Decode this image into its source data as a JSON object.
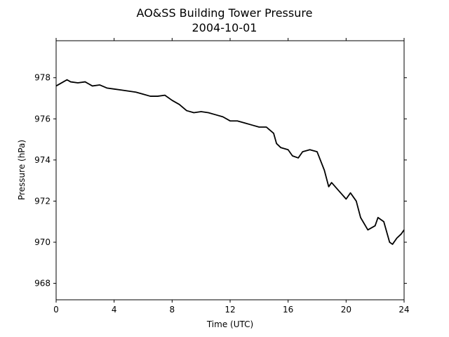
{
  "chart_data": {
    "type": "line",
    "title": [
      "AO&SS Building Tower Pressure",
      "2004-10-01"
    ],
    "x_label": "Time (UTC)",
    "y_label": "Pressure (hPa)",
    "x": [
      0,
      0.5,
      0.75,
      1,
      1.5,
      2,
      2.5,
      3,
      3.5,
      4,
      4.5,
      5,
      5.5,
      6,
      6.5,
      7,
      7.5,
      8,
      8.5,
      9,
      9.5,
      10,
      10.5,
      11,
      11.5,
      12,
      12.5,
      13,
      13.5,
      14,
      14.5,
      15,
      15.2,
      15.5,
      16,
      16.3,
      16.7,
      17,
      17.5,
      18,
      18.5,
      18.8,
      19,
      19.5,
      20,
      20.3,
      20.7,
      21,
      21.5,
      22,
      22.2,
      22.6,
      23,
      23.2,
      23.5,
      23.8,
      24
    ],
    "series": [
      {
        "name": "Pressure",
        "color": "#000000",
        "values": [
          977.6,
          977.8,
          977.9,
          977.8,
          977.75,
          977.8,
          977.6,
          977.65,
          977.5,
          977.45,
          977.4,
          977.35,
          977.3,
          977.2,
          977.1,
          977.1,
          977.15,
          976.9,
          976.7,
          976.4,
          976.3,
          976.35,
          976.3,
          976.2,
          976.1,
          975.9,
          975.9,
          975.8,
          975.7,
          975.6,
          975.6,
          975.3,
          974.8,
          974.6,
          974.5,
          974.2,
          974.1,
          974.4,
          974.5,
          974.4,
          973.5,
          972.7,
          972.9,
          972.5,
          972.1,
          972.4,
          972.0,
          971.2,
          970.6,
          970.8,
          971.2,
          971.0,
          970.0,
          969.9,
          970.2,
          970.4,
          970.6
        ]
      }
    ],
    "xlim": [
      0,
      24
    ],
    "xticks": [
      0,
      4,
      8,
      12,
      16,
      20,
      24
    ],
    "ylim": [
      967.2,
      979.8
    ],
    "yticks": [
      968,
      970,
      972,
      974,
      976,
      978
    ]
  }
}
